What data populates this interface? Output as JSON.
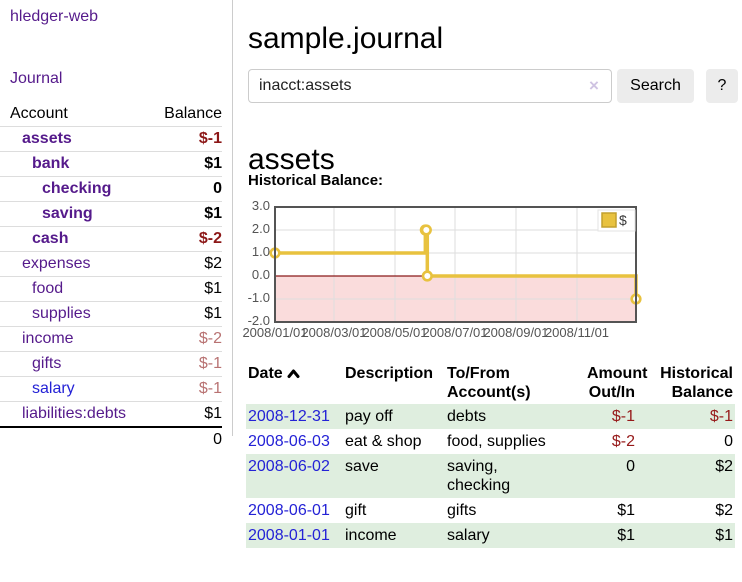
{
  "sidebar": {
    "brand": "hledger-web",
    "nav": {
      "journal": "Journal"
    },
    "accounts_table": {
      "headers": {
        "account": "Account",
        "balance": "Balance"
      },
      "rows": [
        {
          "name": "assets",
          "depth": 1,
          "bold": true,
          "balance": "$-1",
          "balance_style": "neg-strong"
        },
        {
          "name": "bank",
          "depth": 2,
          "bold": true,
          "balance": "$1",
          "balance_style": "pos"
        },
        {
          "name": "checking",
          "depth": 3,
          "bold": true,
          "balance": "0",
          "balance_style": "pos"
        },
        {
          "name": "saving",
          "depth": 3,
          "bold": true,
          "balance": "$1",
          "balance_style": "pos"
        },
        {
          "name": "cash",
          "depth": 2,
          "bold": true,
          "balance": "$-2",
          "balance_style": "neg-strong"
        },
        {
          "name": "expenses",
          "depth": 1,
          "bold": false,
          "balance": "$2",
          "balance_style": "pos"
        },
        {
          "name": "food",
          "depth": 2,
          "bold": false,
          "balance": "$1",
          "balance_style": "pos"
        },
        {
          "name": "supplies",
          "depth": 2,
          "bold": false,
          "balance": "$1",
          "balance_style": "pos"
        },
        {
          "name": "income",
          "depth": 1,
          "bold": false,
          "balance": "$-2",
          "balance_style": "neg-muted"
        },
        {
          "name": "gifts",
          "depth": 2,
          "bold": false,
          "balance": "$-1",
          "balance_style": "neg-muted"
        },
        {
          "name": "salary",
          "depth": 2,
          "bold": false,
          "link_color": "blue",
          "balance": "$-1",
          "balance_style": "neg-muted"
        },
        {
          "name": "liabilities:debts",
          "depth": 1,
          "bold": false,
          "balance": "$1",
          "balance_style": "pos"
        }
      ],
      "total": "0"
    }
  },
  "main": {
    "title": "sample.journal",
    "search": {
      "value": "inacct:assets",
      "clear_icon": "×",
      "button": "Search",
      "help_button": "?"
    },
    "account_heading": "assets",
    "chart_title": "Historical Balance:"
  },
  "chart_data": {
    "type": "line",
    "style": "step-after with point markers",
    "legend_label": "$",
    "legend_position": "top-right",
    "x_range": [
      "2008-01-01",
      "2008-12-31"
    ],
    "ylim": [
      -2.0,
      3.0
    ],
    "y_ticks": [
      "3.0",
      "2.0",
      "1.0",
      "0.0",
      "-1.0",
      "-2.0"
    ],
    "x_ticks": [
      "2008/01/01",
      "2008/03/01",
      "2008/05/01",
      "2008/07/01",
      "2008/09/01",
      "2008/11/01"
    ],
    "series": [
      {
        "name": "$",
        "points": [
          [
            "2008-01-01",
            1
          ],
          [
            "2008-06-01",
            2
          ],
          [
            "2008-06-02",
            2
          ],
          [
            "2008-06-03",
            0
          ],
          [
            "2008-12-31",
            -1
          ]
        ]
      }
    ],
    "negative_region_shaded": true,
    "zero_line": true,
    "grid": true
  },
  "register_table": {
    "headers": [
      "Date",
      "Description",
      "To/From Account(s)",
      "Amount Out/In",
      "Historical Balance"
    ],
    "sort": "ascending on Date",
    "rows": [
      {
        "date": "2008-12-31",
        "description": "pay off",
        "accounts": "debts",
        "amount": "$-1",
        "amount_neg": true,
        "balance": "$-1",
        "balance_neg": true
      },
      {
        "date": "2008-06-03",
        "description": "eat & shop",
        "accounts": "food, supplies",
        "amount": "$-2",
        "amount_neg": true,
        "balance": "0",
        "balance_neg": false
      },
      {
        "date": "2008-06-02",
        "description": "save",
        "accounts": "saving, checking",
        "amount": "0",
        "amount_neg": false,
        "balance": "$2",
        "balance_neg": false
      },
      {
        "date": "2008-06-01",
        "description": "gift",
        "accounts": "gifts",
        "amount": "$1",
        "amount_neg": false,
        "balance": "$2",
        "balance_neg": false
      },
      {
        "date": "2008-01-01",
        "description": "income",
        "accounts": "salary",
        "amount": "$1",
        "amount_neg": false,
        "balance": "$1",
        "balance_neg": false
      }
    ]
  },
  "colors": {
    "link_purple": "#551a8b",
    "link_blue": "#2422d6",
    "negative_strong": "#8c1717",
    "negative_muted": "#b87272",
    "table_negative": "#961919",
    "row_green": "#dfeedf",
    "chart_line_gold": "#e8c23f",
    "chart_marker_fill": "#ffffff",
    "chart_negative_region": "#fadcdc",
    "chart_zero_line": "#8b1a1a",
    "chart_border": "#545454"
  }
}
